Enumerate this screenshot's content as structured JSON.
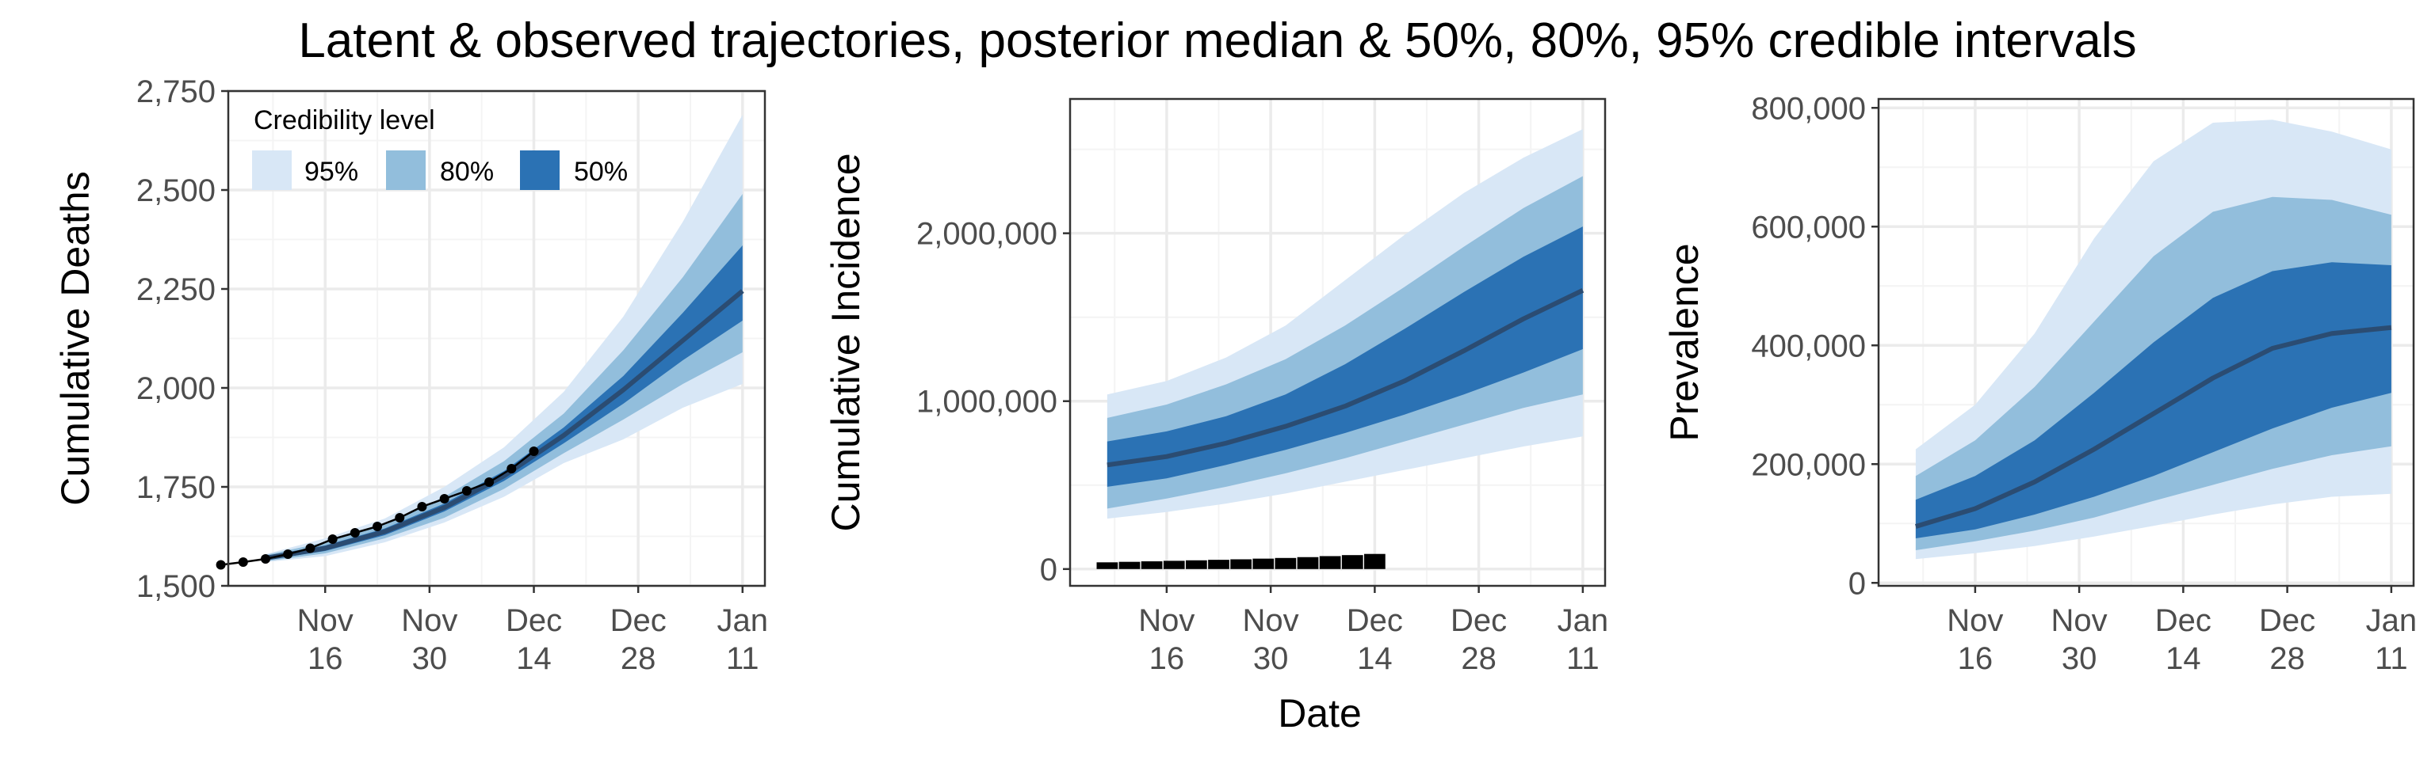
{
  "title": "Latent & observed trajectories, posterior median & 50%, 80%, 95% credible intervals",
  "shared_xlabel": "Date",
  "x_ticks": [
    {
      "day": 16,
      "line1": "Nov",
      "line2": "16"
    },
    {
      "day": 30,
      "line1": "Nov",
      "line2": "30"
    },
    {
      "day": 44,
      "line1": "Dec",
      "line2": "14"
    },
    {
      "day": 58,
      "line1": "Dec",
      "line2": "28"
    },
    {
      "day": 72,
      "line1": "Jan",
      "line2": "11"
    }
  ],
  "legend": {
    "title": "Credibility level",
    "items": [
      {
        "label": "95%",
        "color": "#d8e7f6"
      },
      {
        "label": "80%",
        "color": "#92bedc"
      },
      {
        "label": "50%",
        "color": "#2b72b4"
      }
    ]
  },
  "colors": {
    "ci95": "#d8e7f6",
    "ci80": "#92bedc",
    "ci50": "#2b72b4",
    "median": "#2b4c72",
    "observed": "#000000",
    "grid_major": "#ebebeb",
    "grid_minor": "#f4f4f4",
    "axis_text": "#4d4d4d"
  },
  "chart_data": [
    {
      "type": "area",
      "name": "cumulative-deaths",
      "ylabel": "Cumulative Deaths",
      "xlim": [
        3,
        75
      ],
      "ylim": [
        1500,
        2750
      ],
      "y_ticks": [
        1500,
        1750,
        2000,
        2250,
        2500,
        2750
      ],
      "y_tick_labels": [
        "1,500",
        "1,750",
        "2,000",
        "2,250",
        "2,500",
        "2,750"
      ],
      "band_x": [
        8,
        16,
        24,
        32,
        40,
        48,
        56,
        64,
        72
      ],
      "ci95": {
        "lower": [
          1560,
          1575,
          1610,
          1660,
          1725,
          1810,
          1870,
          1950,
          2010
        ],
        "upper": [
          1580,
          1620,
          1670,
          1750,
          1850,
          1990,
          2180,
          2420,
          2690
        ]
      },
      "ci80": {
        "lower": [
          1562,
          1582,
          1620,
          1672,
          1745,
          1835,
          1920,
          2010,
          2090
        ],
        "upper": [
          1578,
          1610,
          1655,
          1725,
          1815,
          1935,
          2095,
          2280,
          2490
        ]
      },
      "ci50": {
        "lower": [
          1565,
          1588,
          1628,
          1688,
          1765,
          1860,
          1960,
          2070,
          2170
        ],
        "upper": [
          1575,
          1602,
          1645,
          1708,
          1790,
          1900,
          2030,
          2190,
          2360
        ]
      },
      "median": [
        1570,
        1595,
        1637,
        1698,
        1778,
        1880,
        1995,
        2120,
        2245
      ],
      "observed": {
        "x": [
          2,
          5,
          8,
          11,
          14,
          17,
          20,
          23,
          26,
          29,
          32,
          35,
          38,
          41,
          44
        ],
        "y": [
          1553,
          1560,
          1568,
          1580,
          1595,
          1618,
          1634,
          1650,
          1672,
          1700,
          1720,
          1740,
          1762,
          1796,
          1840
        ]
      }
    },
    {
      "type": "area",
      "name": "cumulative-incidence",
      "ylabel": "Cumulative Incidence",
      "xlim": [
        3,
        75
      ],
      "ylim": [
        -100000,
        2800000
      ],
      "y_ticks": [
        0,
        1000000,
        2000000
      ],
      "y_tick_labels": [
        "0",
        "1,000,000",
        "2,000,000"
      ],
      "band_x": [
        8,
        16,
        24,
        32,
        40,
        48,
        56,
        64,
        72
      ],
      "ci95": {
        "lower": [
          300000,
          340000,
          390000,
          450000,
          520000,
          590000,
          660000,
          730000,
          790000
        ],
        "upper": [
          1040000,
          1120000,
          1260000,
          1450000,
          1720000,
          1990000,
          2240000,
          2450000,
          2620000
        ]
      },
      "ci80": {
        "lower": [
          360000,
          420000,
          490000,
          570000,
          660000,
          760000,
          860000,
          960000,
          1040000
        ],
        "upper": [
          900000,
          980000,
          1100000,
          1250000,
          1450000,
          1680000,
          1920000,
          2150000,
          2340000
        ]
      },
      "ci50": {
        "lower": [
          490000,
          540000,
          620000,
          710000,
          810000,
          920000,
          1040000,
          1170000,
          1310000
        ],
        "upper": [
          760000,
          820000,
          910000,
          1040000,
          1220000,
          1430000,
          1650000,
          1860000,
          2040000
        ]
      },
      "median": [
        620000,
        670000,
        750000,
        850000,
        970000,
        1120000,
        1300000,
        1490000,
        1660000
      ],
      "observed_bars": {
        "x": [
          8,
          11,
          14,
          17,
          20,
          23,
          26,
          29,
          32,
          35,
          38,
          41,
          44
        ],
        "y": [
          40000,
          43000,
          46000,
          49000,
          52000,
          55000,
          58000,
          62000,
          66000,
          71000,
          77000,
          83000,
          90000
        ]
      }
    },
    {
      "type": "area",
      "name": "prevalence",
      "ylabel": "Prevalence",
      "xlim": [
        3,
        75
      ],
      "ylim": [
        -5000,
        815000
      ],
      "y_ticks": [
        0,
        200000,
        400000,
        600000,
        800000
      ],
      "y_tick_labels": [
        "0",
        "200,000",
        "400,000",
        "600,000",
        "800,000"
      ],
      "band_x": [
        8,
        16,
        24,
        32,
        40,
        48,
        56,
        64,
        72
      ],
      "ci95": {
        "lower": [
          40000,
          50000,
          62000,
          78000,
          96000,
          115000,
          132000,
          145000,
          150000
        ],
        "upper": [
          225000,
          300000,
          420000,
          580000,
          710000,
          775000,
          780000,
          760000,
          730000
        ]
      },
      "ci80": {
        "lower": [
          55000,
          70000,
          88000,
          110000,
          138000,
          165000,
          192000,
          215000,
          230000
        ],
        "upper": [
          180000,
          240000,
          330000,
          440000,
          550000,
          625000,
          650000,
          645000,
          620000
        ]
      },
      "ci50": {
        "lower": [
          75000,
          90000,
          115000,
          145000,
          180000,
          220000,
          260000,
          295000,
          320000
        ],
        "upper": [
          140000,
          180000,
          240000,
          320000,
          405000,
          480000,
          525000,
          540000,
          535000
        ]
      },
      "median": [
        95000,
        125000,
        170000,
        225000,
        285000,
        345000,
        395000,
        420000,
        430000
      ]
    }
  ]
}
